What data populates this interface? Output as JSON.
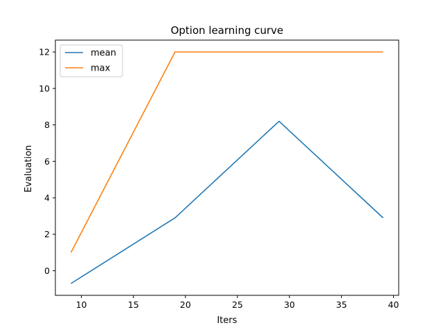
{
  "chart_data": {
    "type": "line",
    "title": "Option learning curve",
    "xlabel": "Iters",
    "ylabel": "Evaluation",
    "xlim": [
      7.5,
      40.5
    ],
    "ylim": [
      -1.35,
      12.65
    ],
    "xticks": [
      10,
      15,
      20,
      25,
      30,
      35,
      40
    ],
    "yticks": [
      0,
      2,
      4,
      6,
      8,
      10,
      12
    ],
    "x": [
      9,
      19,
      29,
      39
    ],
    "series": [
      {
        "name": "mean",
        "color": "#1f77b4",
        "values": [
          -0.7,
          2.9,
          8.2,
          2.9
        ]
      },
      {
        "name": "max",
        "color": "#ff7f0e",
        "values": [
          1.0,
          12.0,
          12.0,
          12.0
        ]
      }
    ],
    "legend": "top-left",
    "grid": false
  }
}
